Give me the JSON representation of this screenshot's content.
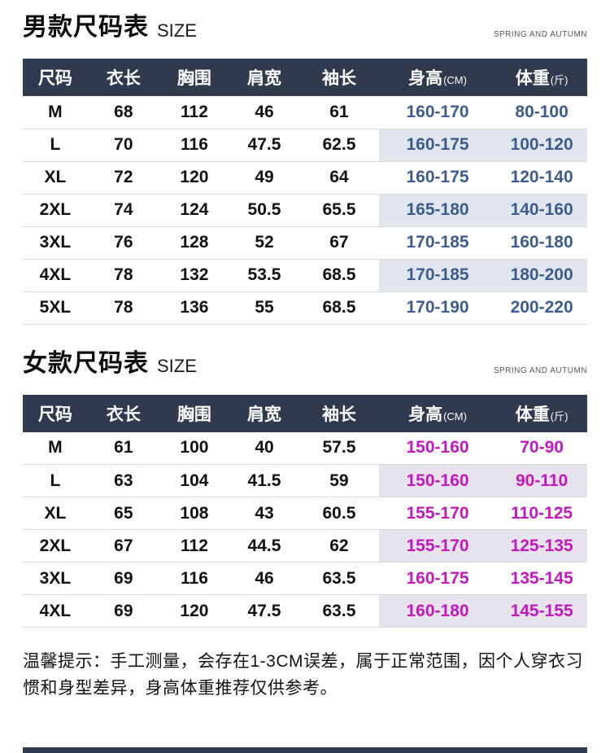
{
  "colors": {
    "header_bg": "#2f3a4e",
    "header_text": "#ffffff",
    "row_line": "#d8d8d8"
  },
  "men": {
    "title": "男款尺码表",
    "subtitle": "SIZE",
    "season": "SPRING AND AUTUMN",
    "accent_color": "#3c5c90",
    "shade_color": "#e1e5ec",
    "columns": [
      {
        "label": "尺码",
        "unit": ""
      },
      {
        "label": "衣长",
        "unit": ""
      },
      {
        "label": "胸围",
        "unit": ""
      },
      {
        "label": "肩宽",
        "unit": ""
      },
      {
        "label": "袖长",
        "unit": ""
      },
      {
        "label": "身高",
        "unit": "(CM)"
      },
      {
        "label": "体重",
        "unit": "(斤)"
      }
    ],
    "rows": [
      {
        "size": "M",
        "length": "68",
        "chest": "112",
        "shoulder": "46",
        "sleeve": "61",
        "height": "160-170",
        "weight": "80-100"
      },
      {
        "size": "L",
        "length": "70",
        "chest": "116",
        "shoulder": "47.5",
        "sleeve": "62.5",
        "height": "160-175",
        "weight": "100-120"
      },
      {
        "size": "XL",
        "length": "72",
        "chest": "120",
        "shoulder": "49",
        "sleeve": "64",
        "height": "160-175",
        "weight": "120-140"
      },
      {
        "size": "2XL",
        "length": "74",
        "chest": "124",
        "shoulder": "50.5",
        "sleeve": "65.5",
        "height": "165-180",
        "weight": "140-160"
      },
      {
        "size": "3XL",
        "length": "76",
        "chest": "128",
        "shoulder": "52",
        "sleeve": "67",
        "height": "170-185",
        "weight": "160-180"
      },
      {
        "size": "4XL",
        "length": "78",
        "chest": "132",
        "shoulder": "53.5",
        "sleeve": "68.5",
        "height": "170-185",
        "weight": "180-200"
      },
      {
        "size": "5XL",
        "length": "78",
        "chest": "136",
        "shoulder": "55",
        "sleeve": "68.5",
        "height": "170-190",
        "weight": "200-220"
      }
    ]
  },
  "women": {
    "title": "女款尺码表",
    "subtitle": "SIZE",
    "season": "SPRING AND AUTUMN",
    "accent_color": "#c217c2",
    "shade_color": "#e6e3ec",
    "columns": [
      {
        "label": "尺码",
        "unit": ""
      },
      {
        "label": "衣长",
        "unit": ""
      },
      {
        "label": "胸围",
        "unit": ""
      },
      {
        "label": "肩宽",
        "unit": ""
      },
      {
        "label": "袖长",
        "unit": ""
      },
      {
        "label": "身高",
        "unit": "(CM)"
      },
      {
        "label": "体重",
        "unit": "(斤)"
      }
    ],
    "rows": [
      {
        "size": "M",
        "length": "61",
        "chest": "100",
        "shoulder": "40",
        "sleeve": "57.5",
        "height": "150-160",
        "weight": "70-90"
      },
      {
        "size": "L",
        "length": "63",
        "chest": "104",
        "shoulder": "41.5",
        "sleeve": "59",
        "height": "150-160",
        "weight": "90-110"
      },
      {
        "size": "XL",
        "length": "65",
        "chest": "108",
        "shoulder": "43",
        "sleeve": "60.5",
        "height": "155-170",
        "weight": "110-125"
      },
      {
        "size": "2XL",
        "length": "67",
        "chest": "112",
        "shoulder": "44.5",
        "sleeve": "62",
        "height": "155-170",
        "weight": "125-135"
      },
      {
        "size": "3XL",
        "length": "69",
        "chest": "116",
        "shoulder": "46",
        "sleeve": "63.5",
        "height": "160-175",
        "weight": "135-145"
      },
      {
        "size": "4XL",
        "length": "69",
        "chest": "120",
        "shoulder": "47.5",
        "sleeve": "63.5",
        "height": "160-180",
        "weight": "145-155"
      }
    ]
  },
  "note": "温馨提示：手工测量，会存在1-3CM误差，属于正常范围，因个人穿衣习惯和身型差异，身高体重推荐仅供参考。"
}
